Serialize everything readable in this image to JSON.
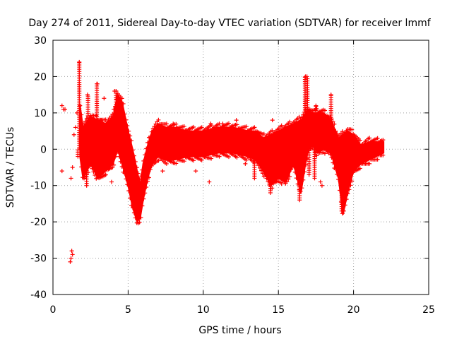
{
  "chart_data": {
    "type": "scatter",
    "title": "Day 274 of 2011, Sidereal Day-to-day VTEC variation (SDTVAR) for receiver lmmf",
    "xlabel": "GPS time / hours",
    "ylabel": "SDTVAR / TECUs",
    "xlim": [
      0,
      25
    ],
    "ylim": [
      -40,
      30
    ],
    "xticks": [
      "0",
      "5",
      "10",
      "15",
      "20",
      "25"
    ],
    "yticks": [
      "30",
      "20",
      "10",
      "0",
      "-10",
      "-20",
      "-30",
      "-40"
    ],
    "grid": true,
    "marker": "+",
    "color": "#ff0000",
    "envelope": {
      "x": [
        1.8,
        2.0,
        2.5,
        3.0,
        3.5,
        4.0,
        4.3,
        4.6,
        5.0,
        5.3,
        5.6,
        5.8,
        6.0,
        6.3,
        6.6,
        7.0,
        7.5,
        8.0,
        9.0,
        10.0,
        11.0,
        12.0,
        13.0,
        13.5,
        14.0,
        14.5,
        15.0,
        15.5,
        16.0,
        16.5,
        16.8,
        17.0,
        17.3,
        17.6,
        18.0,
        18.5,
        19.0,
        19.3,
        19.6,
        20.0,
        20.5,
        21.0,
        21.5,
        22.0
      ],
      "upper": [
        12,
        6,
        9,
        8,
        7,
        9,
        15,
        13,
        5,
        0,
        -6,
        -10,
        -4,
        1,
        5,
        7,
        6,
        6,
        5,
        5,
        6,
        6,
        5,
        5,
        3,
        4,
        5,
        6,
        7,
        8,
        10,
        11,
        10,
        10,
        10,
        8,
        3,
        4,
        5,
        4,
        1,
        2,
        2,
        2
      ],
      "lower": [
        -2,
        -8,
        -4,
        -8,
        -6,
        -4,
        0,
        -4,
        -10,
        -16,
        -20,
        -19,
        -14,
        -8,
        -4,
        -2,
        -3,
        -3,
        -2,
        -2,
        -1,
        -1,
        -2,
        -3,
        -6,
        -10,
        -8,
        -9,
        -4,
        -12,
        -4,
        0,
        1,
        -1,
        0,
        -1,
        -8,
        -18,
        -12,
        -6,
        -4,
        -3,
        -2,
        -1
      ]
    },
    "spikes": [
      {
        "x": 1.75,
        "ymin": -2,
        "ymax": 24
      },
      {
        "x": 2.3,
        "ymin": -10,
        "ymax": 15
      },
      {
        "x": 2.95,
        "ymin": -6,
        "ymax": 18
      },
      {
        "x": 3.2,
        "ymin": -3,
        "ymax": 8
      },
      {
        "x": 4.2,
        "ymin": -2,
        "ymax": 16
      },
      {
        "x": 13.5,
        "ymin": -8,
        "ymax": 4
      },
      {
        "x": 14.5,
        "ymin": -12,
        "ymax": 2
      },
      {
        "x": 16.5,
        "ymin": -14,
        "ymax": 3
      },
      {
        "x": 16.8,
        "ymin": 3,
        "ymax": 20
      },
      {
        "x": 16.9,
        "ymin": 5,
        "ymax": 20
      },
      {
        "x": 17.1,
        "ymin": -7,
        "ymax": 8
      },
      {
        "x": 17.5,
        "ymin": -8,
        "ymax": 12
      },
      {
        "x": 18.5,
        "ymin": 4,
        "ymax": 15
      },
      {
        "x": 19.3,
        "ymin": -17,
        "ymax": -3
      },
      {
        "x": 19.6,
        "ymin": -12,
        "ymax": 0
      }
    ],
    "outliers": [
      {
        "x": 0.6,
        "y": 12
      },
      {
        "x": 0.7,
        "y": 11
      },
      {
        "x": 0.8,
        "y": 11
      },
      {
        "x": 0.6,
        "y": -6
      },
      {
        "x": 1.2,
        "y": -8
      },
      {
        "x": 1.3,
        "y": -5
      },
      {
        "x": 1.25,
        "y": -28
      },
      {
        "x": 1.2,
        "y": -30
      },
      {
        "x": 1.15,
        "y": -31
      },
      {
        "x": 1.3,
        "y": -29
      },
      {
        "x": 1.4,
        "y": 4
      },
      {
        "x": 1.5,
        "y": 6
      },
      {
        "x": 1.6,
        "y": 10
      },
      {
        "x": 3.4,
        "y": 14
      },
      {
        "x": 3.5,
        "y": -7
      },
      {
        "x": 3.9,
        "y": -9
      },
      {
        "x": 4.1,
        "y": 16
      },
      {
        "x": 7.3,
        "y": -6
      },
      {
        "x": 8.0,
        "y": 7
      },
      {
        "x": 8.2,
        "y": 6
      },
      {
        "x": 9.5,
        "y": -6
      },
      {
        "x": 10.4,
        "y": -9
      },
      {
        "x": 10.5,
        "y": 7
      },
      {
        "x": 11.3,
        "y": 7
      },
      {
        "x": 12.2,
        "y": 8
      },
      {
        "x": 12.8,
        "y": -4
      },
      {
        "x": 14.6,
        "y": 8
      },
      {
        "x": 17.8,
        "y": -9
      },
      {
        "x": 17.9,
        "y": -10
      },
      {
        "x": 18.3,
        "y": 6
      },
      {
        "x": 21.6,
        "y": 0.5
      }
    ]
  }
}
